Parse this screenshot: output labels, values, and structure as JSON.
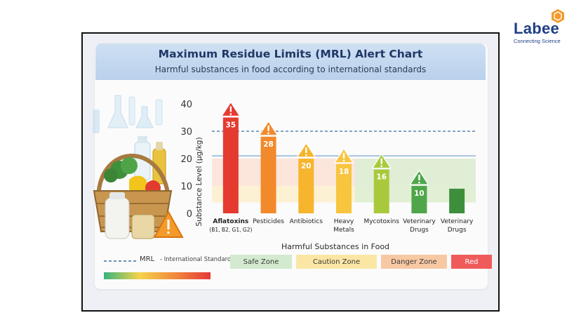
{
  "brand": {
    "name": "Labee",
    "tagline": "Connecting Science"
  },
  "chart_data": {
    "type": "bar",
    "title": "Maximum Residue Limits (MRL) Alert Chart",
    "subtitle": "Harmful substances in food according to international standards",
    "xlabel": "Harmful Substances in Food",
    "ylabel": "Substance Level (µg/kg)",
    "ylim": [
      0,
      40
    ],
    "yticks": [
      "0",
      "10",
      "20",
      "30",
      "40"
    ],
    "mrl_line": 30,
    "categories": [
      {
        "name": "Aflatoxins",
        "sub": "(B1, B2, G1, G2)",
        "bold": true
      },
      {
        "name": "Pesticides",
        "sub": ""
      },
      {
        "name": "Antibiotics",
        "sub": ""
      },
      {
        "name": "Heavy",
        "sub": "Metals"
      },
      {
        "name": "Mycotoxins",
        "sub": ""
      },
      {
        "name": "Veterinary",
        "sub": "Drugs"
      },
      {
        "name": "Veterinary",
        "sub": "Drugs"
      }
    ],
    "values": [
      35,
      28,
      20,
      18,
      16,
      10,
      9
    ],
    "labels": [
      "35",
      "28",
      "20",
      "18",
      "16",
      "10",
      ""
    ],
    "warnings": [
      true,
      true,
      true,
      true,
      true,
      true,
      false
    ],
    "bar_colors": [
      "#e53a30",
      "#f28a2c",
      "#f7b52e",
      "#f7c53e",
      "#a9c93c",
      "#4fa64a",
      "#3d8f3c"
    ],
    "zones": [
      {
        "name": "Safe Zone",
        "color": "#d3ead0"
      },
      {
        "name": "Caution Zone",
        "color": "#fbe6a4"
      },
      {
        "name": "Danger Zone",
        "color": "#f8c8a3"
      },
      {
        "name": "Red",
        "color": "#ef5b5b"
      }
    ],
    "legend": {
      "mrl_label": "MRL",
      "mrl_desc": "- International Standard"
    },
    "grid": false
  }
}
